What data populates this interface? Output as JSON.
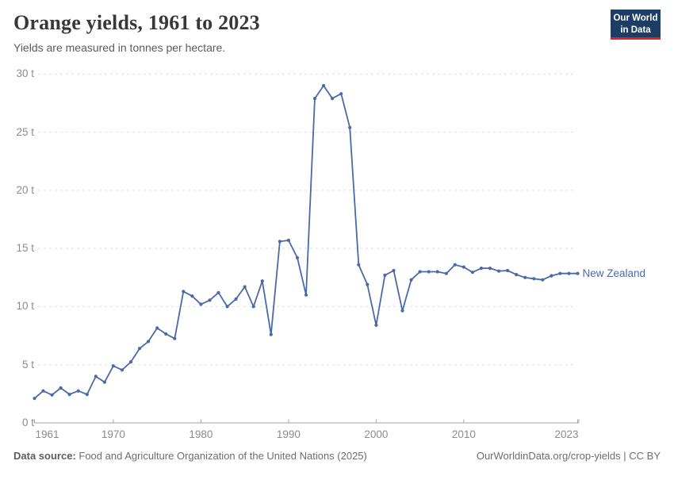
{
  "header": {
    "title": "Orange yields, 1961 to 2023",
    "subtitle": "Yields are measured in tonnes per hectare.",
    "logo": {
      "line1": "Our World",
      "line2": "in Data"
    }
  },
  "chart_data": {
    "type": "line",
    "title": "Orange yields, 1961 to 2023",
    "ylabel": "tonnes per hectare",
    "unit": "t",
    "ylim": [
      0,
      30
    ],
    "yticks": [
      0,
      5,
      10,
      15,
      20,
      25,
      30
    ],
    "ytick_labels": [
      "0 t",
      "5 t",
      "10 t",
      "15 t",
      "20 t",
      "25 t",
      "30 t"
    ],
    "xticks": [
      1961,
      1970,
      1980,
      1990,
      2000,
      2010,
      2023
    ],
    "xtick_labels": [
      "1961",
      "1970",
      "1980",
      "1990",
      "2000",
      "2010",
      "2023"
    ],
    "grid": "horizontal-dashed",
    "legend_position": "end-of-line",
    "colors": {
      "line": "#4a6aa5",
      "grid": "#dedede",
      "axis": "#a5a5a5",
      "tick_text": "#8c8c8c"
    },
    "series": [
      {
        "name": "New Zealand",
        "color": "#4a6aa5",
        "x": [
          1961,
          1962,
          1963,
          1964,
          1965,
          1966,
          1967,
          1968,
          1969,
          1970,
          1971,
          1972,
          1973,
          1974,
          1975,
          1976,
          1977,
          1978,
          1979,
          1980,
          1981,
          1982,
          1983,
          1984,
          1985,
          1986,
          1987,
          1988,
          1989,
          1990,
          1991,
          1992,
          1993,
          1994,
          1995,
          1996,
          1997,
          1998,
          1999,
          2000,
          2001,
          2002,
          2003,
          2004,
          2005,
          2006,
          2007,
          2008,
          2009,
          2010,
          2011,
          2012,
          2013,
          2014,
          2015,
          2016,
          2017,
          2018,
          2019,
          2020,
          2021,
          2022,
          2023
        ],
        "values": [
          2.1,
          2.75,
          2.4,
          3.0,
          2.45,
          2.75,
          2.45,
          4.0,
          3.5,
          4.9,
          4.55,
          5.25,
          6.4,
          7.0,
          8.15,
          7.65,
          7.25,
          11.3,
          10.9,
          10.2,
          10.55,
          11.2,
          10.0,
          10.65,
          11.7,
          10.0,
          12.2,
          7.6,
          15.6,
          15.7,
          14.2,
          11.0,
          27.9,
          29.0,
          27.9,
          28.3,
          25.4,
          13.6,
          11.9,
          8.4,
          12.7,
          13.1,
          9.65,
          12.3,
          13.0,
          13.0,
          13.0,
          12.85,
          13.6,
          13.4,
          12.95,
          13.3,
          13.3,
          13.05,
          13.1,
          12.75,
          12.5,
          12.4,
          12.3,
          12.65,
          12.85,
          12.85,
          12.85
        ]
      }
    ]
  },
  "footer": {
    "datasource_label": "Data source:",
    "datasource_text": "Food and Agriculture Organization of the United Nations (2025)",
    "attribution": "OurWorldinData.org/crop-yields | CC BY"
  }
}
